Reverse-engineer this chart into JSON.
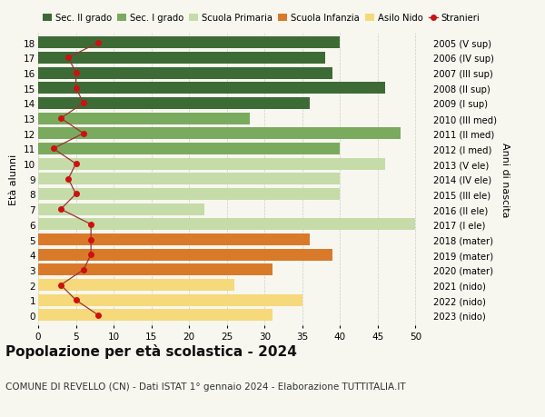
{
  "ages": [
    18,
    17,
    16,
    15,
    14,
    13,
    12,
    11,
    10,
    9,
    8,
    7,
    6,
    5,
    4,
    3,
    2,
    1,
    0
  ],
  "bar_values": [
    40,
    38,
    39,
    46,
    36,
    28,
    48,
    40,
    46,
    40,
    40,
    22,
    50,
    36,
    39,
    31,
    26,
    35,
    31
  ],
  "stranieri": [
    8,
    4,
    5,
    5,
    6,
    3,
    6,
    2,
    5,
    4,
    5,
    3,
    7,
    7,
    7,
    6,
    3,
    5,
    8
  ],
  "right_labels": [
    "2005 (V sup)",
    "2006 (IV sup)",
    "2007 (III sup)",
    "2008 (II sup)",
    "2009 (I sup)",
    "2010 (III med)",
    "2011 (II med)",
    "2012 (I med)",
    "2013 (V ele)",
    "2014 (IV ele)",
    "2015 (III ele)",
    "2016 (II ele)",
    "2017 (I ele)",
    "2018 (mater)",
    "2019 (mater)",
    "2020 (mater)",
    "2021 (nido)",
    "2022 (nido)",
    "2023 (nido)"
  ],
  "bar_colors": [
    "#3d6b35",
    "#3d6b35",
    "#3d6b35",
    "#3d6b35",
    "#3d6b35",
    "#7aaa5e",
    "#7aaa5e",
    "#7aaa5e",
    "#c5dba8",
    "#c5dba8",
    "#c5dba8",
    "#c5dba8",
    "#c5dba8",
    "#d97a2a",
    "#d97a2a",
    "#d97a2a",
    "#f5d97a",
    "#f5d97a",
    "#f5d97a"
  ],
  "legend_labels": [
    "Sec. II grado",
    "Sec. I grado",
    "Scuola Primaria",
    "Scuola Infanzia",
    "Asilo Nido",
    "Stranieri"
  ],
  "legend_colors": [
    "#3d6b35",
    "#7aaa5e",
    "#c5dba8",
    "#d97a2a",
    "#f5d97a",
    "#cc1111"
  ],
  "ylabel_left": "Età alunni",
  "ylabel_right": "Anni di nascita",
  "title": "Popolazione per età scolastica - 2024",
  "subtitle": "COMUNE DI REVELLO (CN) - Dati ISTAT 1° gennaio 2024 - Elaborazione TUTTITALIA.IT",
  "xlim": [
    0,
    52
  ],
  "xticks": [
    0,
    5,
    10,
    15,
    20,
    25,
    30,
    35,
    40,
    45,
    50
  ],
  "stranieri_color": "#cc1111",
  "stranieri_line_color": "#993333",
  "bg_color": "#f7f7f0",
  "bar_height": 0.78,
  "title_fontsize": 11,
  "subtitle_fontsize": 7.5,
  "axis_label_fontsize": 8,
  "tick_fontsize": 7.5,
  "legend_fontsize": 7.2
}
